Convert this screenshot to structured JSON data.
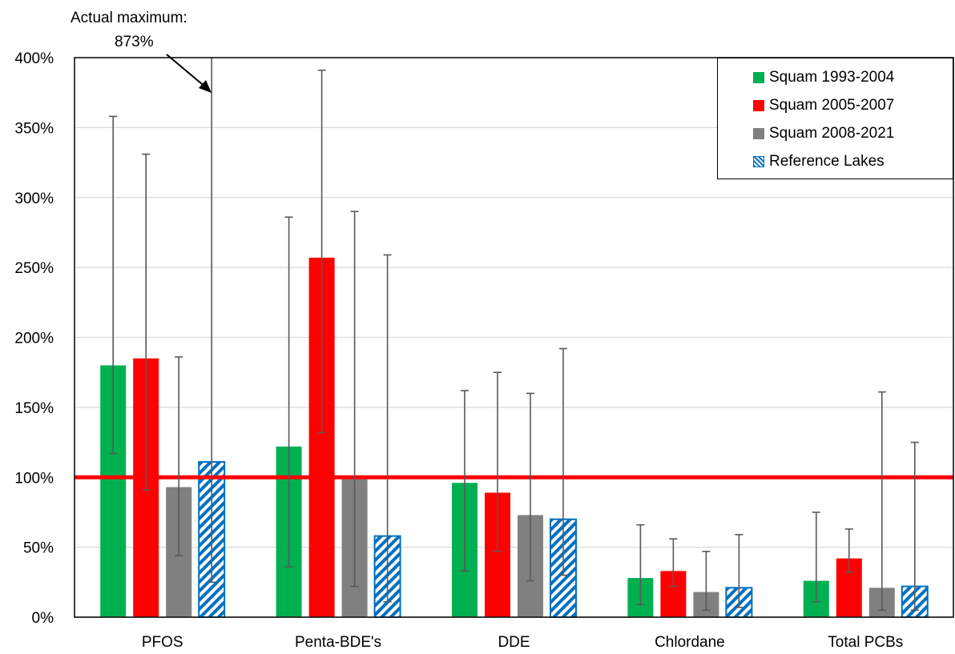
{
  "chart_data": {
    "type": "bar",
    "title": "",
    "xlabel": "",
    "ylabel": "",
    "categories": [
      "PFOS",
      "Penta-BDE's",
      "DDE",
      "Chlordane",
      "Total PCBs"
    ],
    "y_ticks": [
      "0%",
      "50%",
      "100%",
      "150%",
      "200%",
      "250%",
      "300%",
      "350%",
      "400%"
    ],
    "ylim": [
      0,
      400
    ],
    "y_unit": "%",
    "grid": "horizontal",
    "legend_position": "top-right",
    "reference_line": {
      "value": 100,
      "color": "#ff0000"
    },
    "series": [
      {
        "name": "Squam 1993-2004",
        "color": "#00b050",
        "pattern": "solid",
        "values": [
          180,
          122,
          96,
          28,
          26
        ],
        "error_low": [
          117,
          36,
          33,
          9,
          11
        ],
        "error_high": [
          358,
          286,
          162,
          66,
          75
        ]
      },
      {
        "name": "Squam 2005-2007",
        "color": "#ff0000",
        "pattern": "solid",
        "values": [
          185,
          257,
          89,
          33,
          42
        ],
        "error_low": [
          91,
          132,
          47,
          22,
          32
        ],
        "error_high": [
          331,
          391,
          175,
          56,
          63
        ]
      },
      {
        "name": "Squam 2008-2021",
        "color": "#808080",
        "pattern": "solid",
        "values": [
          93,
          100,
          73,
          18,
          21
        ],
        "error_low": [
          44,
          22,
          26,
          5,
          5
        ],
        "error_high": [
          186,
          290,
          160,
          47,
          161
        ]
      },
      {
        "name": "Reference Lakes",
        "color": "#0070c0",
        "pattern": "diagonal-hatch",
        "values": [
          111,
          58,
          70,
          21,
          22
        ],
        "error_low": [
          25,
          11,
          30,
          7,
          5
        ],
        "error_high": [
          873,
          259,
          192,
          59,
          125
        ]
      }
    ],
    "annotation": {
      "line1": "Actual maximum:",
      "line2": "873%",
      "points_to_series": "Reference Lakes",
      "points_to_category": "PFOS"
    }
  }
}
